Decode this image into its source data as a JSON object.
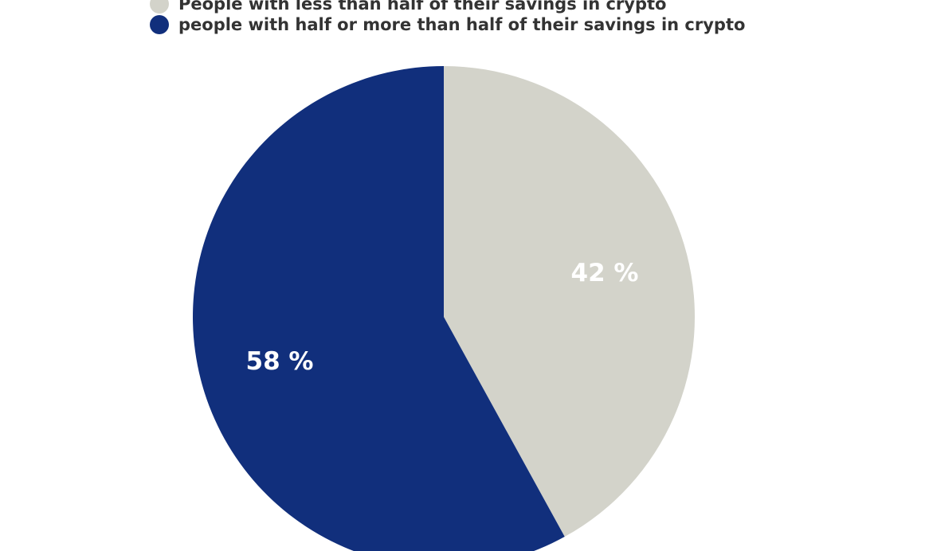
{
  "chart_data": {
    "type": "pie",
    "title": "",
    "legend_position": "top-left",
    "start_angle_deg": 0,
    "direction": "clockwise",
    "slices": [
      {
        "name": "People with less than half of their savings in crypto",
        "value": 42,
        "label": "42 %",
        "color": "#d3d3ca"
      },
      {
        "name": "people with half or more than half of their savings in crypto",
        "value": 58,
        "label": "58 %",
        "color": "#112f7c"
      }
    ]
  }
}
